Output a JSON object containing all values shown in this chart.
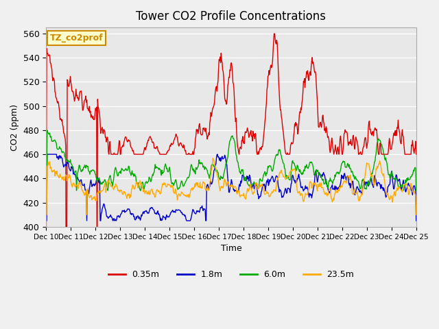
{
  "title": "Tower CO2 Profile Concentrations",
  "xlabel": "Time",
  "ylabel": "CO2 (ppm)",
  "ylim": [
    400,
    565
  ],
  "yticks": [
    400,
    420,
    440,
    460,
    480,
    500,
    520,
    540,
    560
  ],
  "annotation_text": "TZ_co2prof",
  "annotation_bg": "#ffffcc",
  "annotation_border": "#cc8800",
  "series": [
    {
      "label": "0.35m",
      "color": "#dd0000"
    },
    {
      "label": "1.8m",
      "color": "#0000cc"
    },
    {
      "label": "6.0m",
      "color": "#00aa00"
    },
    {
      "label": "23.5m",
      "color": "#ffaa00"
    }
  ],
  "x_tick_labels": [
    "Dec 10",
    "Dec 11",
    "Dec 12",
    "Dec 13",
    "Dec 14",
    "Dec 15",
    "Dec 16",
    "Dec 17",
    "Dec 18",
    "Dec 19",
    "Dec 20",
    "Dec 21",
    "Dec 22",
    "Dec 23",
    "Dec 24",
    "Dec 25"
  ],
  "bg_color": "#e8e8e8",
  "grid_color": "#ffffff",
  "line_width": 1.0
}
